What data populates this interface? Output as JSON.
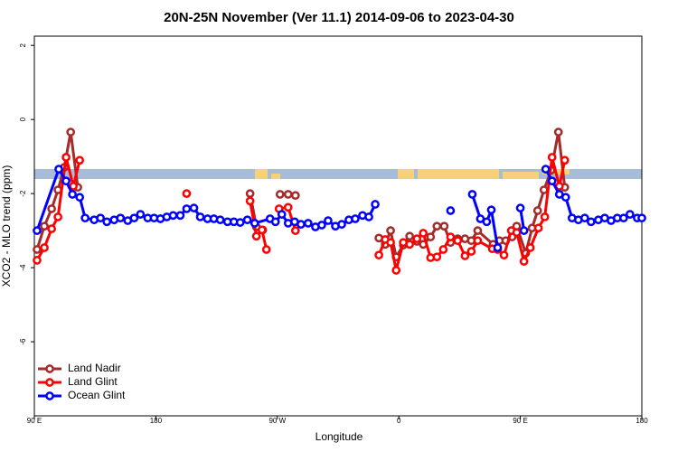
{
  "chart_data": {
    "type": "line",
    "title": "20N-25N November (Ver 11.1)   2014-09-06 to 2023-04-30",
    "x_label": "Longitude",
    "y_label": "XCO2 - MLO trend (ppm)",
    "xlim": [
      90,
      540
    ],
    "xticks": [
      {
        "value": 90,
        "label": "90 E"
      },
      180,
      {
        "value": 270,
        "label": "90 W"
      },
      {
        "value": 360,
        "label": "0"
      },
      {
        "value": 450,
        "label": "90 E"
      },
      {
        "value": 540,
        "label": "180"
      }
    ],
    "ylim": [
      -8,
      2.25
    ],
    "yticks": [
      -6,
      -4,
      -2,
      0,
      2
    ],
    "legend": "bottom-left",
    "series": [
      {
        "name": "Land Nadir",
        "color": "#a52a2a",
        "x": [
          92,
          97.4,
          102.8,
          107.5,
          112.2,
          116.9,
          122.2,
          null,
          249.8,
          254.5,
          259.2,
          null,
          272,
          278,
          283.4,
          null,
          345.2,
          349.9,
          353.9,
          358,
          363.3,
          368,
          373.4,
          378.1,
          383.5,
          388.2,
          393.6,
          398.3,
          403.6,
          409,
          413.7,
          418.4,
          429.8,
          434.5,
          439.2,
          443.9,
          447.3,
          454,
          458.7,
          462.8,
          467.5,
          472.8,
          478.2,
          482.9
        ],
        "values": [
          -3.51,
          -2.88,
          -2.41,
          -1.9,
          -1.29,
          -0.34,
          -1.83,
          null,
          -2.0,
          -2.9,
          -2.98,
          null,
          -2.02,
          -2.02,
          -2.05,
          null,
          -3.2,
          -3.37,
          -3.0,
          -3.71,
          -3.39,
          -3.15,
          -3.29,
          -3.37,
          -3.17,
          -2.88,
          -2.88,
          -3.32,
          -3.22,
          -3.22,
          -3.27,
          -3.0,
          -3.37,
          -3.27,
          -3.27,
          -3.17,
          -2.88,
          -3.61,
          -2.93,
          -2.46,
          -1.9,
          -1.37,
          -0.34,
          -1.83
        ]
      },
      {
        "name": "Land Glint",
        "color": "#ff0000",
        "x": [
          92,
          97.4,
          102.8,
          107.5,
          113.5,
          118.9,
          123.6,
          null,
          202.8,
          null,
          249.8,
          254.5,
          258.6,
          261.9,
          null,
          271.3,
          278,
          283.4,
          null,
          345.2,
          349.9,
          353.9,
          358,
          363.3,
          368,
          373.4,
          378.1,
          383.5,
          388.2,
          392.9,
          398.3,
          403.6,
          409,
          413.7,
          418.4,
          429.2,
          433.2,
          437.9,
          443.3,
          447.3,
          452.7,
          457.4,
          463.4,
          468.1,
          473.5,
          478.9,
          482.9
        ],
        "values": [
          -3.8,
          -3.46,
          -2.95,
          -2.63,
          -1.02,
          -1.8,
          -1.1,
          null,
          -2.0,
          null,
          -2.2,
          -3.15,
          -2.98,
          -3.51,
          null,
          -2.41,
          -2.37,
          -3.0,
          null,
          -3.66,
          -3.24,
          -3.32,
          -4.07,
          -3.32,
          -3.37,
          -3.22,
          -3.07,
          -3.73,
          -3.71,
          -3.51,
          -3.17,
          -3.27,
          -3.68,
          -3.56,
          -3.27,
          -3.49,
          -3.51,
          -3.66,
          -3.0,
          -3.05,
          -3.83,
          -3.46,
          -2.93,
          -2.63,
          -1.02,
          -1.8,
          -1.1
        ]
      },
      {
        "name": "Ocean Glint",
        "color": "#0000ff",
        "x": [
          92,
          108.1,
          113.5,
          118.2,
          123.6,
          127.6,
          134.3,
          139,
          143.7,
          149.1,
          153.8,
          159.2,
          163.9,
          168.6,
          174,
          178.7,
          183.4,
          188.1,
          192.8,
          198.1,
          202.8,
          208.2,
          212.9,
          218.3,
          223,
          227.7,
          233.1,
          237.8,
          242.5,
          247.8,
          253.2,
          264.6,
          268.6,
          273.3,
          278,
          282.8,
          287.5,
          292.8,
          298.2,
          302.9,
          307.6,
          313,
          317.7,
          323,
          327.7,
          333.1,
          337.8,
          342.5,
          null,
          398.3,
          null,
          414.4,
          420.4,
          425.1,
          428.5,
          433.2,
          null,
          450,
          452.7,
          null,
          468.8,
          473.5,
          478.9,
          483.6,
          488.3,
          493,
          497.7,
          502.4,
          507.8,
          512.5,
          517.2,
          521.8,
          526.5,
          531.2,
          536.6,
          540
        ],
        "values": [
          -3.0,
          -1.34,
          -1.66,
          -2.02,
          -2.1,
          -2.66,
          -2.71,
          -2.66,
          -2.76,
          -2.71,
          -2.66,
          -2.73,
          -2.66,
          -2.56,
          -2.66,
          -2.66,
          -2.68,
          -2.63,
          -2.59,
          -2.59,
          -2.41,
          -2.39,
          -2.63,
          -2.68,
          -2.68,
          -2.71,
          -2.76,
          -2.76,
          -2.78,
          -2.71,
          -2.8,
          -2.68,
          -2.76,
          -2.56,
          -2.8,
          -2.76,
          -2.83,
          -2.8,
          -2.9,
          -2.85,
          -2.73,
          -2.88,
          -2.83,
          -2.71,
          -2.68,
          -2.59,
          -2.63,
          -2.29,
          null,
          -2.46,
          null,
          -2.02,
          -2.68,
          -2.76,
          -2.44,
          -3.46,
          null,
          -2.39,
          -3.0,
          null,
          -1.34,
          -1.66,
          -2.02,
          -2.1,
          -2.66,
          -2.71,
          -2.66,
          -2.76,
          -2.71,
          -2.66,
          -2.73,
          -2.66,
          -2.66,
          -2.56,
          -2.66,
          -2.66
        ]
      }
    ]
  }
}
